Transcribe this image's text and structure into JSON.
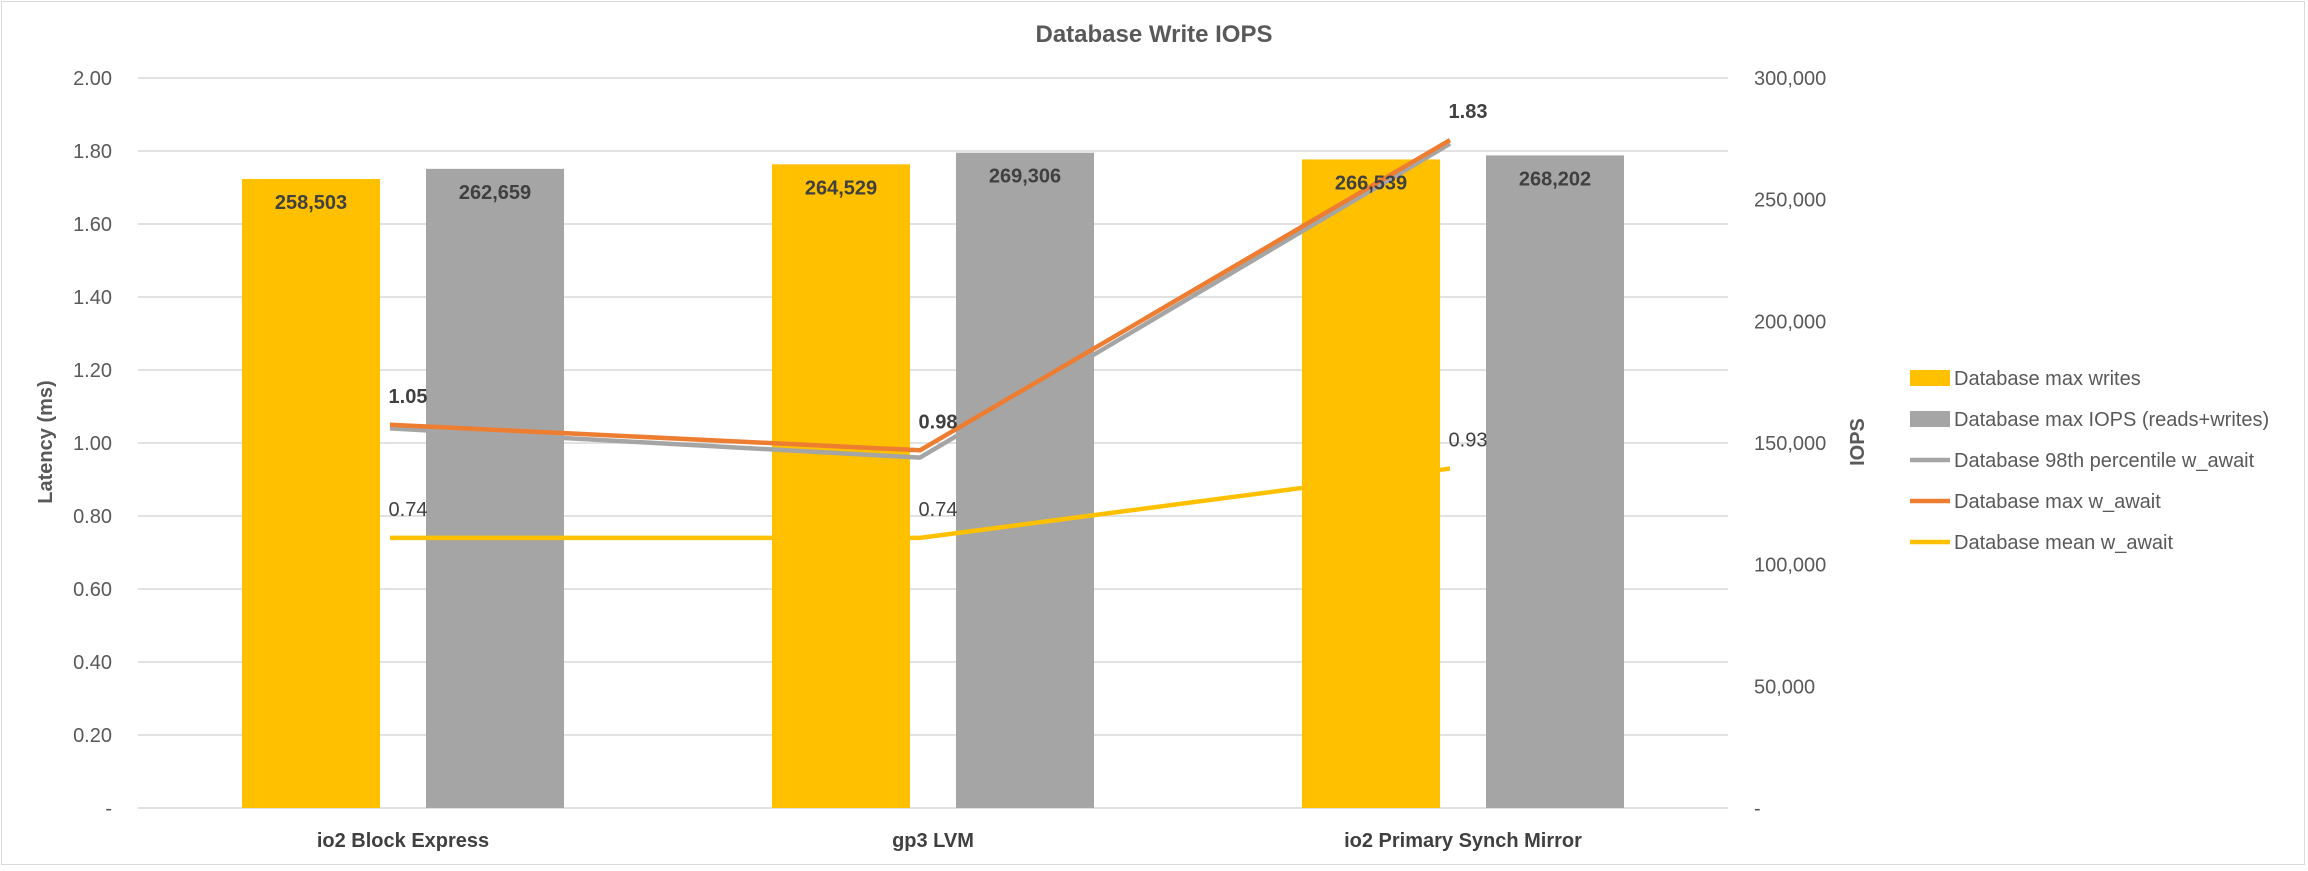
{
  "chart_data": {
    "type": "bar",
    "title": "Database Write IOPS",
    "categories": [
      "io2 Block Express",
      "gp3 LVM",
      "io2 Primary Synch Mirror"
    ],
    "y_left": {
      "label": "Latency (ms)",
      "lim": [
        0,
        2.0
      ],
      "ticks": [
        0,
        0.2,
        0.4,
        0.6,
        0.8,
        1.0,
        1.2,
        1.4,
        1.6,
        1.8,
        2.0
      ],
      "tick_labels": [
        "-",
        "0.20",
        "0.40",
        "0.60",
        "0.80",
        "1.00",
        "1.20",
        "1.40",
        "1.60",
        "1.80",
        "2.00"
      ]
    },
    "y_right": {
      "label": "IOPS",
      "lim": [
        0,
        300000
      ],
      "ticks": [
        0,
        50000,
        100000,
        150000,
        200000,
        250000,
        300000
      ],
      "tick_labels": [
        "-",
        "50,000",
        "100,000",
        "150,000",
        "200,000",
        "250,000",
        "300,000"
      ]
    },
    "bar_series": [
      {
        "name": "Database max writes",
        "color": "#FFC000",
        "axis": "right",
        "values": [
          258503,
          264529,
          266539
        ],
        "labels": [
          "258,503",
          "264,529",
          "266,539"
        ]
      },
      {
        "name": "Database max IOPS (reads+writes)",
        "color": "#A5A5A5",
        "axis": "right",
        "values": [
          262659,
          269306,
          268202
        ],
        "labels": [
          "262,659",
          "269,306",
          "268,202"
        ]
      }
    ],
    "line_series": [
      {
        "name": "Database 98th percentile w_await",
        "color": "#A5A5A5",
        "axis": "left",
        "values": [
          1.04,
          0.96,
          1.82
        ],
        "labels": [
          "",
          "",
          ""
        ],
        "label_bold": false
      },
      {
        "name": "Database max w_await",
        "color": "#ED7D31",
        "axis": "left",
        "values": [
          1.05,
          0.98,
          1.83
        ],
        "labels": [
          "1.05",
          "0.98",
          "1.83"
        ],
        "label_bold": true
      },
      {
        "name": "Database mean w_await",
        "color": "#FFC000",
        "axis": "left",
        "values": [
          0.74,
          0.74,
          0.93
        ],
        "labels": [
          "0.74",
          "0.74",
          "0.93"
        ],
        "label_bold": false
      }
    ],
    "grid": true,
    "legend_position": "right"
  }
}
